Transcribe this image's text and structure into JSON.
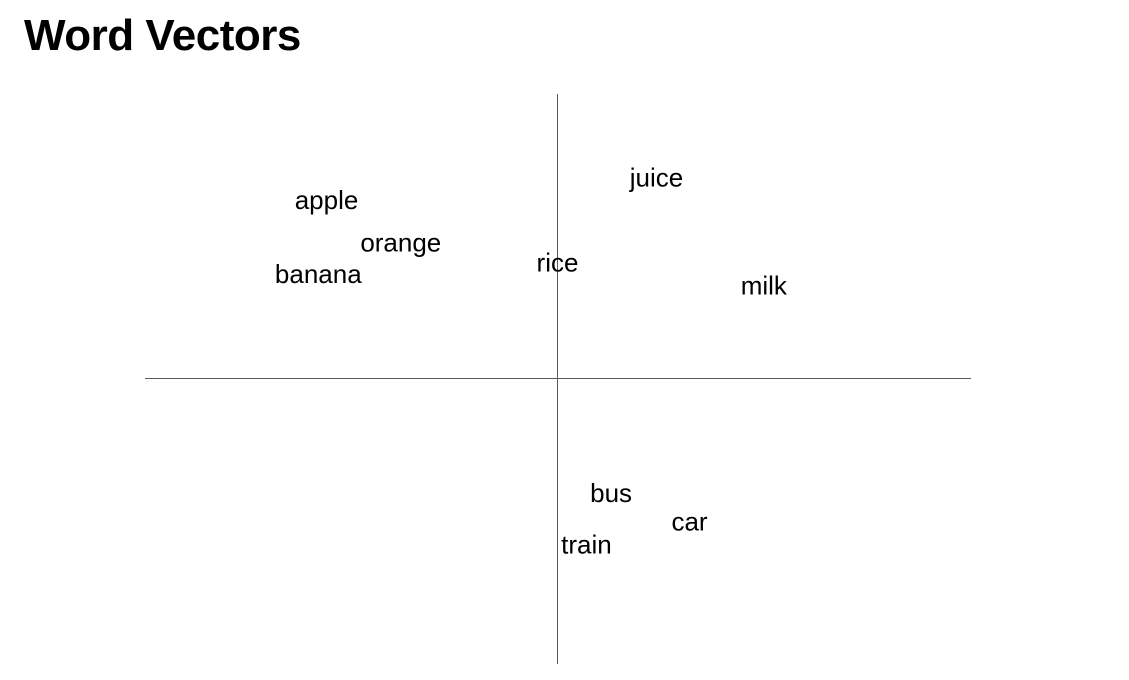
{
  "page": {
    "title": "Word Vectors"
  },
  "chart_data": {
    "type": "scatter",
    "title": "Word Vectors",
    "xlabel": "",
    "ylabel": "",
    "xlim": [
      -1.0,
      1.0
    ],
    "ylim": [
      -1.0,
      1.0
    ],
    "grid": false,
    "marker_style": "text-label",
    "axis_color": "#5a5a5a",
    "label_color": "#000000",
    "points": [
      {
        "label": "apple",
        "x": -0.56,
        "y": 0.62
      },
      {
        "label": "orange",
        "x": -0.38,
        "y": 0.47
      },
      {
        "label": "banana",
        "x": -0.58,
        "y": 0.36
      },
      {
        "label": "rice",
        "x": 0.0,
        "y": 0.4
      },
      {
        "label": "juice",
        "x": 0.24,
        "y": 0.7
      },
      {
        "label": "milk",
        "x": 0.5,
        "y": 0.32
      },
      {
        "label": "bus",
        "x": 0.13,
        "y": -0.41
      },
      {
        "label": "car",
        "x": 0.32,
        "y": -0.51
      },
      {
        "label": "train",
        "x": 0.07,
        "y": -0.59
      }
    ]
  }
}
